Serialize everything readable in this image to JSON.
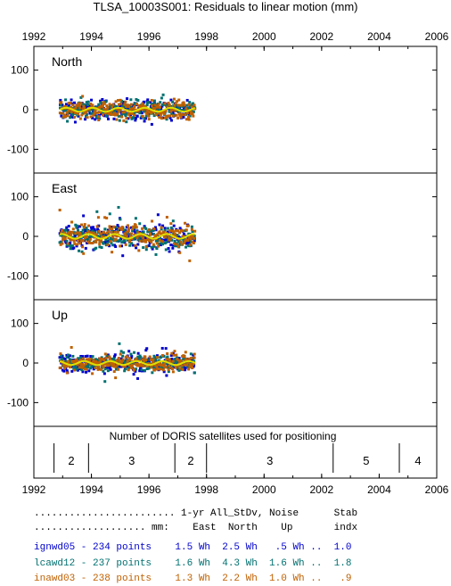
{
  "title": "TLSA_10003S001: Residuals to linear motion (mm)",
  "chart_data": {
    "type": "scatter",
    "x_ticks": [
      "1992",
      "1994",
      "1996",
      "1998",
      "2000",
      "2002",
      "2004",
      "2006"
    ],
    "xlim": [
      1992,
      2006
    ],
    "ylim": [
      -160,
      160
    ],
    "y_ticks": [
      "100",
      "0",
      "-100"
    ],
    "panels": [
      {
        "label": "North",
        "spread": 22,
        "trend_amp": 5
      },
      {
        "label": "East",
        "spread": 28,
        "trend_amp": 6
      },
      {
        "label": "Up",
        "spread": 20,
        "trend_amp": 5
      }
    ],
    "data_span": [
      1992.9,
      1997.6
    ],
    "series": [
      {
        "name": "ignwd05",
        "color": "#0000cc"
      },
      {
        "name": "lcawd12",
        "color": "#007070"
      },
      {
        "name": "inawd03",
        "color": "#c06000"
      }
    ],
    "trend_color": "#e0e000",
    "satellites": {
      "title": "Number of DORIS satellites used for positioning",
      "segments": [
        {
          "start": 1992.7,
          "end": 1993.9,
          "count": "2"
        },
        {
          "start": 1993.9,
          "end": 1996.9,
          "count": "3"
        },
        {
          "start": 1996.9,
          "end": 1998.0,
          "count": "2"
        },
        {
          "start": 1998.0,
          "end": 2002.4,
          "count": "3"
        },
        {
          "start": 2002.4,
          "end": 2004.7,
          "count": "5"
        },
        {
          "start": 2004.7,
          "end": 2006.0,
          "count": "4"
        }
      ]
    }
  },
  "stats_table": {
    "header1": "........................ 1-yr All_StDv, Noise      Stab",
    "header2": "................... mm:    East  North    Up       indx",
    "rows": [
      {
        "text": "ignwd05 - 234 points    1.5 Wh  2.5 Wh   .5 Wh ..  1.0",
        "color": "#0000cc"
      },
      {
        "text": "lcawd12 - 237 points    1.6 Wh  4.3 Wh  1.6 Wh ..  1.8",
        "color": "#007070"
      },
      {
        "text": "inawd03 - 238 points    1.3 Wh  2.2 Wh  1.0 Wh ..   .9",
        "color": "#c06000"
      }
    ]
  }
}
